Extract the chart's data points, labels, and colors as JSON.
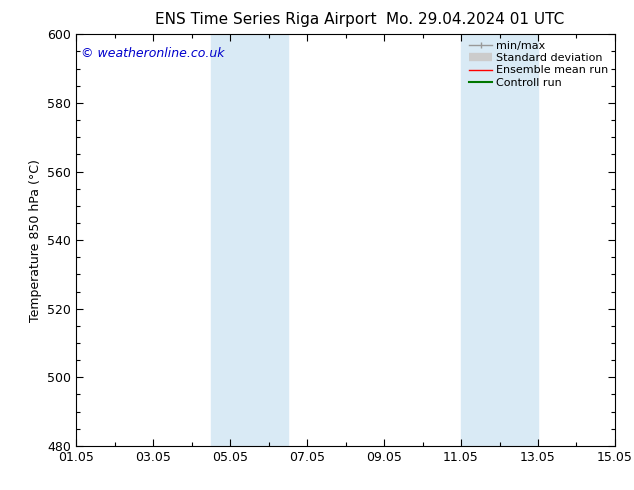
{
  "title_left": "ENS Time Series Riga Airport",
  "title_right": "Mo. 29.04.2024 01 UTC",
  "ylabel": "Temperature 850 hPa (°C)",
  "ylim": [
    480,
    600
  ],
  "yticks": [
    480,
    500,
    520,
    540,
    560,
    580,
    600
  ],
  "xlim": [
    0,
    14
  ],
  "xtick_positions": [
    0,
    2,
    4,
    6,
    8,
    10,
    12,
    14
  ],
  "xtick_labels": [
    "01.05",
    "03.05",
    "05.05",
    "07.05",
    "09.05",
    "11.05",
    "13.05",
    "15.05"
  ],
  "shaded_bands": [
    {
      "xmin": 3.5,
      "xmax": 4.5
    },
    {
      "xmin": 4.5,
      "xmax": 5.5
    },
    {
      "xmin": 10.0,
      "xmax": 11.0
    },
    {
      "xmin": 11.0,
      "xmax": 12.0
    }
  ],
  "shade_color": "#d9eaf5",
  "background_color": "#ffffff",
  "watermark_text": "© weatheronline.co.uk",
  "watermark_color": "#0000cc",
  "legend_items": [
    {
      "label": "min/max",
      "color": "#999999",
      "lw": 1.0
    },
    {
      "label": "Standard deviation",
      "color": "#cccccc",
      "lw": 6
    },
    {
      "label": "Ensemble mean run",
      "color": "#ff0000",
      "lw": 1.0
    },
    {
      "label": "Controll run",
      "color": "#007700",
      "lw": 1.5
    }
  ],
  "tick_color": "#000000",
  "spine_color": "#000000",
  "title_fontsize": 11,
  "axis_fontsize": 9,
  "watermark_fontsize": 9
}
